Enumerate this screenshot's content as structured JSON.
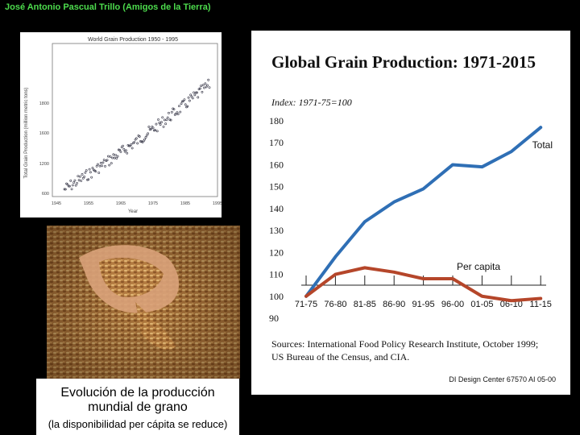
{
  "header": {
    "author": "José Antonio Pascual Trillo (Amigos de la Tierra)"
  },
  "mini_chart": {
    "title": "World Grain Production 1950 - 1995",
    "ylabel": "Total Grain Production (million metric tons)",
    "xlabel": "Year",
    "yticks": [
      "600",
      "1200",
      "1600",
      "1800"
    ],
    "xticks": [
      "1945",
      "1955",
      "1965",
      "1975",
      "1985",
      "1995"
    ]
  },
  "photo": {
    "description_icon": "hands-with-grain-photo"
  },
  "caption": {
    "line1": "Evolución de la producción",
    "line2": "mundial de grano",
    "line3": "(la disponibilidad per cápita se reduce)"
  },
  "colors": {
    "total": "#2f6fb5",
    "per_capita": "#b5462a",
    "header_green": "#4ddc4d"
  },
  "chart_data": {
    "type": "line",
    "title": "Global Grain Production: 1971-2015",
    "subtitle": "Index: 1971-75=100",
    "categories": [
      "71-75",
      "76-80",
      "81-85",
      "86-90",
      "91-95",
      "96-00",
      "01-05",
      "06-10",
      "11-15"
    ],
    "yticks": [
      "180",
      "170",
      "160",
      "150",
      "140",
      "130",
      "120",
      "110",
      "100",
      "90"
    ],
    "ylim": [
      90,
      180
    ],
    "series": [
      {
        "name": "Total",
        "values": [
          100,
          118,
          134,
          143,
          149,
          160,
          159,
          166,
          177
        ]
      },
      {
        "name": "Per capita",
        "values": [
          100,
          110,
          113,
          111,
          108,
          108,
          100,
          98,
          99
        ]
      }
    ],
    "source_line1": "Sources: International Food Policy Research Institute, October 1999;",
    "source_line2": "US Bureau of the Census, and CIA.",
    "credit": "DI Design Center 67570 AI 05-00"
  }
}
